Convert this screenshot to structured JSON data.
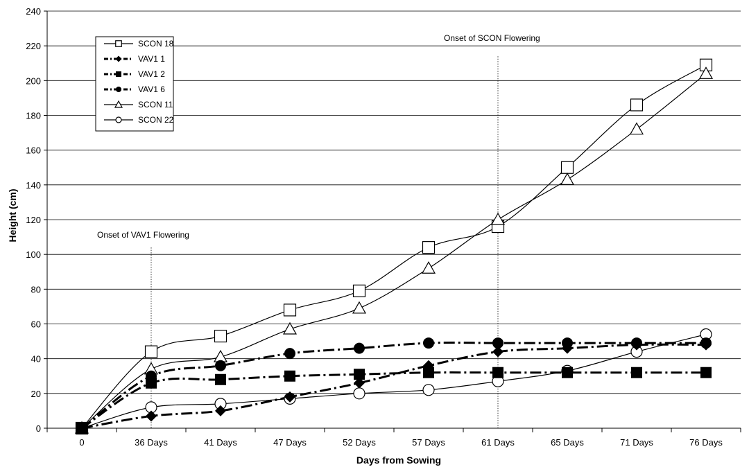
{
  "chart_data": {
    "type": "line",
    "title": "",
    "xlabel": "Days from Sowing",
    "ylabel": "Height (cm)",
    "categories": [
      "0",
      "36 Days",
      "41 Days",
      "47 Days",
      "52 Days",
      "57 Days",
      "61 Days",
      "65 Days",
      "71 Days",
      "76 Days"
    ],
    "ylim": [
      0,
      240
    ],
    "yticks": [
      0,
      20,
      40,
      60,
      80,
      100,
      120,
      140,
      160,
      180,
      200,
      220,
      240
    ],
    "grid": true,
    "legend_position": "top-left",
    "series": [
      {
        "name": "SCON 18",
        "marker": "square-open",
        "line": "solid-thin",
        "values": [
          0,
          44,
          53,
          68,
          79,
          104,
          116,
          150,
          186,
          209
        ]
      },
      {
        "name": "VAV1 1",
        "marker": "diamond-filled",
        "line": "dash-dot-thick",
        "values": [
          0,
          7,
          10,
          18,
          26,
          36,
          44,
          46,
          48,
          48
        ]
      },
      {
        "name": "VAV1 2",
        "marker": "square-filled",
        "line": "dash-dot-thick",
        "values": [
          0,
          26,
          28,
          30,
          31,
          32,
          32,
          32,
          32,
          32
        ]
      },
      {
        "name": "VAV1 6",
        "marker": "circle-filled",
        "line": "dash-dot-thick",
        "values": [
          0,
          30,
          36,
          43,
          46,
          49,
          49,
          49,
          49,
          49
        ]
      },
      {
        "name": "SCON 11",
        "marker": "triangle-open",
        "line": "solid-thin",
        "values": [
          0,
          34,
          41,
          57,
          69,
          92,
          120,
          143,
          172,
          204
        ]
      },
      {
        "name": "SCON 22",
        "marker": "circle-open",
        "line": "solid-thin",
        "values": [
          0,
          12,
          14,
          17,
          20,
          22,
          27,
          33,
          44,
          54
        ]
      }
    ],
    "annotations": [
      {
        "text": "Onset of VAV1 Flowering",
        "category": "36 Days",
        "y_top": 104
      },
      {
        "text": "Onset of SCON Flowering",
        "category": "61 Days",
        "y_top": 214
      }
    ]
  }
}
